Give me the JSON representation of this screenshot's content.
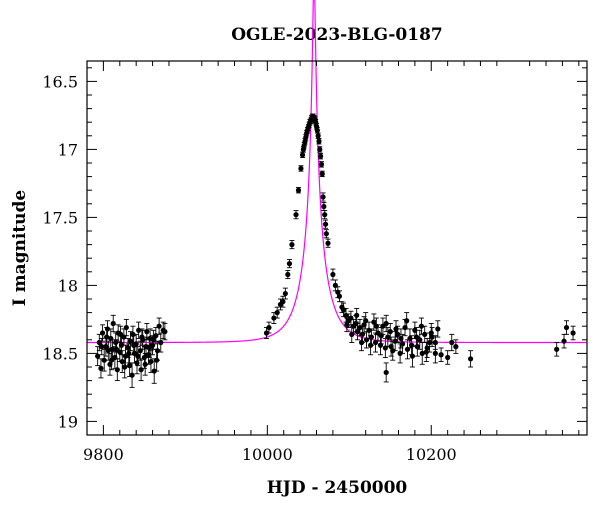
{
  "chart_data": {
    "type": "scatter",
    "title": "OGLE-2023-BLG-0187",
    "xlabel": "HJD - 2450000",
    "ylabel": "I magnitude",
    "xlim": [
      9780,
      10390
    ],
    "ylim": [
      19.1,
      16.35
    ],
    "y_inverted": true,
    "x_ticks": [
      9800,
      10000,
      10200
    ],
    "x_tick_labels": [
      "9800",
      "10000",
      "10200"
    ],
    "y_ticks": [
      16.5,
      17,
      17.5,
      18,
      18.5,
      19
    ],
    "y_tick_labels": [
      "16.5",
      "17",
      "17.5",
      "18",
      "18.5",
      "19"
    ],
    "grid": false,
    "model_color": "#ff00ff",
    "point_color": "#000000",
    "model": {
      "name": "",
      "t0": 10057,
      "tE": 30,
      "u0": 0.0475,
      "I_baseline": 18.42,
      "blend_fraction": 0.55
    },
    "series": [
      {
        "name": "",
        "points": [
          [
            9793,
            18.52,
            0.07
          ],
          [
            9795,
            18.42,
            0.06
          ],
          [
            9797,
            18.61,
            0.07
          ],
          [
            9799,
            18.35,
            0.06
          ],
          [
            9801,
            18.55,
            0.08
          ],
          [
            9803,
            18.45,
            0.07
          ],
          [
            9805,
            18.32,
            0.06
          ],
          [
            9806,
            18.48,
            0.07
          ],
          [
            9808,
            18.58,
            0.08
          ],
          [
            9809,
            18.39,
            0.07
          ],
          [
            9811,
            18.47,
            0.07
          ],
          [
            9812,
            18.28,
            0.06
          ],
          [
            9814,
            18.53,
            0.08
          ],
          [
            9815,
            18.42,
            0.07
          ],
          [
            9817,
            18.62,
            0.08
          ],
          [
            9818,
            18.35,
            0.06
          ],
          [
            9820,
            18.49,
            0.07
          ],
          [
            9822,
            18.44,
            0.07
          ],
          [
            9823,
            18.56,
            0.08
          ],
          [
            9825,
            18.38,
            0.06
          ],
          [
            9827,
            18.52,
            0.08
          ],
          [
            9828,
            18.31,
            0.06
          ],
          [
            9830,
            18.46,
            0.07
          ],
          [
            9832,
            18.59,
            0.08
          ],
          [
            9833,
            18.41,
            0.07
          ],
          [
            9835,
            18.66,
            0.09
          ],
          [
            9836,
            18.36,
            0.06
          ],
          [
            9838,
            18.5,
            0.07
          ],
          [
            9840,
            18.43,
            0.07
          ],
          [
            9841,
            18.57,
            0.08
          ],
          [
            9843,
            18.33,
            0.06
          ],
          [
            9845,
            18.48,
            0.07
          ],
          [
            9846,
            18.62,
            0.08
          ],
          [
            9848,
            18.4,
            0.07
          ],
          [
            9850,
            18.53,
            0.08
          ],
          [
            9852,
            18.45,
            0.07
          ],
          [
            9853,
            18.34,
            0.06
          ],
          [
            9855,
            18.51,
            0.07
          ],
          [
            9857,
            18.39,
            0.07
          ],
          [
            9858,
            18.56,
            0.08
          ],
          [
            9860,
            18.44,
            0.07
          ],
          [
            9862,
            18.63,
            0.09
          ],
          [
            9864,
            18.37,
            0.06
          ],
          [
            9866,
            18.48,
            0.07
          ],
          [
            9868,
            18.3,
            0.06
          ],
          [
            9870,
            18.42,
            0.07
          ],
          [
            9873,
            18.33,
            0.06
          ],
          [
            9875,
            18.34,
            0.06
          ],
          [
            9798,
            18.45,
            0.06
          ],
          [
            9804,
            18.38,
            0.07
          ],
          [
            9810,
            18.55,
            0.07
          ],
          [
            9816,
            18.47,
            0.07
          ],
          [
            9821,
            18.36,
            0.06
          ],
          [
            9826,
            18.6,
            0.08
          ],
          [
            9831,
            18.5,
            0.07
          ],
          [
            9837,
            18.44,
            0.07
          ],
          [
            9842,
            18.52,
            0.07
          ],
          [
            9847,
            18.38,
            0.06
          ],
          [
            9851,
            18.58,
            0.08
          ],
          [
            9856,
            18.46,
            0.07
          ],
          [
            9861,
            18.4,
            0.07
          ],
          [
            9865,
            18.55,
            0.08
          ],
          [
            9999,
            18.35,
            0.04
          ],
          [
            10002,
            18.31,
            0.04
          ],
          [
            10008,
            18.24,
            0.04
          ],
          [
            10012,
            18.2,
            0.04
          ],
          [
            10016,
            18.14,
            0.04
          ],
          [
            10019,
            18.12,
            0.04
          ],
          [
            10022,
            18.06,
            0.04
          ],
          [
            10025,
            17.92,
            0.03
          ],
          [
            10027,
            17.84,
            0.03
          ],
          [
            10030,
            17.7,
            0.03
          ],
          [
            10035,
            17.48,
            0.03
          ],
          [
            10038,
            17.3,
            0.02
          ],
          [
            10041,
            17.14,
            0.02
          ],
          [
            10043,
            17.04,
            0.02
          ],
          [
            10044,
            17,
            0.02
          ],
          [
            10045,
            16.97,
            0.02
          ],
          [
            10046,
            16.94,
            0.02
          ],
          [
            10047,
            16.91,
            0.02
          ],
          [
            10048,
            16.88,
            0.02
          ],
          [
            10049,
            16.86,
            0.02
          ],
          [
            10050,
            16.84,
            0.02
          ],
          [
            10051,
            16.82,
            0.02
          ],
          [
            10052,
            16.8,
            0.02
          ],
          [
            10053,
            16.79,
            0.02
          ],
          [
            10054,
            16.77,
            0.02
          ],
          [
            10055,
            16.76,
            0.02
          ],
          [
            10056,
            16.76,
            0.02
          ],
          [
            10057,
            16.77,
            0.02
          ],
          [
            10058,
            16.78,
            0.02
          ],
          [
            10059,
            16.8,
            0.02
          ],
          [
            10060,
            16.83,
            0.02
          ],
          [
            10061,
            16.86,
            0.02
          ],
          [
            10062,
            16.9,
            0.02
          ],
          [
            10063,
            16.94,
            0.02
          ],
          [
            10064,
            17,
            0.02
          ],
          [
            10065,
            17.05,
            0.02
          ],
          [
            10066,
            17.11,
            0.02
          ],
          [
            10067,
            17.18,
            0.02
          ],
          [
            10068,
            17.35,
            0.03
          ],
          [
            10069,
            17.42,
            0.03
          ],
          [
            10070,
            17.48,
            0.03
          ],
          [
            10071,
            17.55,
            0.03
          ],
          [
            10072,
            17.62,
            0.03
          ],
          [
            10074,
            17.69,
            0.03
          ],
          [
            10080,
            17.92,
            0.04
          ],
          [
            10083,
            18,
            0.04
          ],
          [
            10086,
            18.05,
            0.04
          ],
          [
            10088,
            18.08,
            0.04
          ],
          [
            10091,
            18.16,
            0.04
          ],
          [
            10093,
            18.18,
            0.05
          ],
          [
            10096,
            18.22,
            0.05
          ],
          [
            10099,
            18.26,
            0.05
          ],
          [
            10102,
            18.24,
            0.05
          ],
          [
            10105,
            18.3,
            0.05
          ],
          [
            10108,
            18.28,
            0.06
          ],
          [
            10110,
            18.34,
            0.06
          ],
          [
            10113,
            18.31,
            0.06
          ],
          [
            10116,
            18.36,
            0.06
          ],
          [
            10118,
            18.29,
            0.06
          ],
          [
            10121,
            18.4,
            0.06
          ],
          [
            10124,
            18.33,
            0.06
          ],
          [
            10127,
            18.38,
            0.06
          ],
          [
            10130,
            18.27,
            0.06
          ],
          [
            10132,
            18.42,
            0.07
          ],
          [
            10135,
            18.35,
            0.06
          ],
          [
            10138,
            18.44,
            0.07
          ],
          [
            10141,
            18.3,
            0.06
          ],
          [
            10144,
            18.46,
            0.07
          ],
          [
            10147,
            18.38,
            0.07
          ],
          [
            10150,
            18.34,
            0.06
          ],
          [
            10153,
            18.48,
            0.07
          ],
          [
            10156,
            18.41,
            0.07
          ],
          [
            10159,
            18.36,
            0.06
          ],
          [
            10162,
            18.5,
            0.07
          ],
          [
            10165,
            18.43,
            0.07
          ],
          [
            10168,
            18.31,
            0.06
          ],
          [
            10171,
            18.47,
            0.07
          ],
          [
            10174,
            18.39,
            0.07
          ],
          [
            10177,
            18.52,
            0.08
          ],
          [
            10180,
            18.33,
            0.06
          ],
          [
            10183,
            18.45,
            0.07
          ],
          [
            10186,
            18.4,
            0.07
          ],
          [
            10189,
            18.5,
            0.08
          ],
          [
            10192,
            18.36,
            0.06
          ],
          [
            10195,
            18.46,
            0.07
          ],
          [
            10198,
            18.42,
            0.07
          ],
          [
            10201,
            18.38,
            0.07
          ],
          [
            10205,
            18.5,
            0.07
          ],
          [
            10208,
            18.32,
            0.06
          ],
          [
            10097,
            18.29,
            0.05
          ],
          [
            10103,
            18.36,
            0.06
          ],
          [
            10109,
            18.22,
            0.05
          ],
          [
            10115,
            18.42,
            0.06
          ],
          [
            10120,
            18.26,
            0.06
          ],
          [
            10126,
            18.44,
            0.07
          ],
          [
            10133,
            18.3,
            0.06
          ],
          [
            10139,
            18.37,
            0.06
          ],
          [
            10145,
            18.28,
            0.06
          ],
          [
            10151,
            18.45,
            0.07
          ],
          [
            10157,
            18.32,
            0.06
          ],
          [
            10163,
            18.39,
            0.07
          ],
          [
            10170,
            18.26,
            0.06
          ],
          [
            10176,
            18.44,
            0.07
          ],
          [
            10182,
            18.38,
            0.07
          ],
          [
            10188,
            18.3,
            0.06
          ],
          [
            10194,
            18.49,
            0.07
          ],
          [
            10200,
            18.35,
            0.07
          ],
          [
            10145,
            18.64,
            0.07
          ],
          [
            10205,
            18.42,
            0.05
          ],
          [
            10212,
            18.51,
            0.05
          ],
          [
            10220,
            18.53,
            0.05
          ],
          [
            10225,
            18.42,
            0.06
          ],
          [
            10230,
            18.45,
            0.05
          ],
          [
            10248,
            18.54,
            0.06
          ],
          [
            10353,
            18.47,
            0.05
          ],
          [
            10362,
            18.41,
            0.05
          ],
          [
            10365,
            18.31,
            0.05
          ],
          [
            10373,
            18.35,
            0.05
          ]
        ]
      }
    ]
  }
}
